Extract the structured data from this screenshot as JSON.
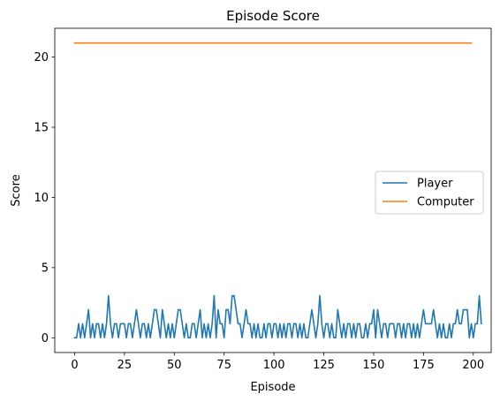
{
  "chart_data": {
    "type": "line",
    "title": "Episode Score",
    "xlabel": "Episode",
    "ylabel": "Score",
    "xlim": [
      -9.95,
      208.95
    ],
    "ylim": [
      -1.05,
      22.05
    ],
    "xticks": [
      0,
      25,
      50,
      75,
      100,
      125,
      150,
      175,
      200
    ],
    "yticks": [
      0,
      5,
      10,
      15,
      20
    ],
    "grid": false,
    "legend_position": "center-right",
    "series": [
      {
        "name": "Player",
        "color": "#1f77b4",
        "x_start": 0,
        "x_step": 1,
        "values": [
          0,
          0,
          1,
          0,
          1,
          0,
          1,
          2,
          0,
          1,
          0,
          1,
          1,
          0,
          1,
          0,
          1,
          3,
          1,
          0,
          1,
          1,
          0,
          1,
          1,
          1,
          0,
          1,
          1,
          0,
          1,
          2,
          1,
          0,
          1,
          1,
          0,
          1,
          0,
          1,
          2,
          2,
          1,
          0,
          2,
          1,
          0,
          1,
          0,
          1,
          0,
          1,
          2,
          2,
          1,
          0,
          1,
          0,
          0,
          1,
          1,
          0,
          1,
          2,
          0,
          1,
          0,
          1,
          0,
          1,
          3,
          0,
          2,
          1,
          1,
          0,
          2,
          2,
          1,
          3,
          3,
          2,
          1,
          1,
          0,
          1,
          2,
          1,
          1,
          0,
          1,
          0,
          1,
          0,
          0,
          1,
          0,
          1,
          1,
          0,
          1,
          1,
          0,
          1,
          0,
          1,
          0,
          1,
          1,
          0,
          1,
          1,
          0,
          1,
          0,
          1,
          0,
          0,
          1,
          2,
          1,
          0,
          1,
          3,
          1,
          0,
          1,
          1,
          0,
          1,
          0,
          0,
          2,
          1,
          0,
          1,
          0,
          1,
          1,
          0,
          1,
          0,
          1,
          1,
          0,
          0,
          1,
          0,
          1,
          1,
          2,
          0,
          2,
          1,
          0,
          1,
          1,
          0,
          1,
          1,
          1,
          0,
          1,
          1,
          0,
          1,
          0,
          1,
          1,
          0,
          1,
          0,
          1,
          0,
          1,
          2,
          1,
          1,
          1,
          1,
          2,
          1,
          0,
          1,
          0,
          1,
          0,
          0,
          1,
          0,
          1,
          1,
          2,
          1,
          1,
          2,
          2,
          2,
          0,
          1,
          0,
          1,
          1,
          3,
          1
        ]
      },
      {
        "name": "Computer",
        "color": "#ff7f0e",
        "x_start": 0,
        "x_step": 1,
        "values": [
          21,
          21,
          21,
          21,
          21,
          21,
          21,
          21,
          21,
          21,
          21,
          21,
          21,
          21,
          21,
          21,
          21,
          21,
          21,
          21,
          21,
          21,
          21,
          21,
          21,
          21,
          21,
          21,
          21,
          21,
          21,
          21,
          21,
          21,
          21,
          21,
          21,
          21,
          21,
          21,
          21,
          21,
          21,
          21,
          21,
          21,
          21,
          21,
          21,
          21,
          21,
          21,
          21,
          21,
          21,
          21,
          21,
          21,
          21,
          21,
          21,
          21,
          21,
          21,
          21,
          21,
          21,
          21,
          21,
          21,
          21,
          21,
          21,
          21,
          21,
          21,
          21,
          21,
          21,
          21,
          21,
          21,
          21,
          21,
          21,
          21,
          21,
          21,
          21,
          21,
          21,
          21,
          21,
          21,
          21,
          21,
          21,
          21,
          21,
          21,
          21,
          21,
          21,
          21,
          21,
          21,
          21,
          21,
          21,
          21,
          21,
          21,
          21,
          21,
          21,
          21,
          21,
          21,
          21,
          21,
          21,
          21,
          21,
          21,
          21,
          21,
          21,
          21,
          21,
          21,
          21,
          21,
          21,
          21,
          21,
          21,
          21,
          21,
          21,
          21,
          21,
          21,
          21,
          21,
          21,
          21,
          21,
          21,
          21,
          21,
          21,
          21,
          21,
          21,
          21,
          21,
          21,
          21,
          21,
          21,
          21,
          21,
          21,
          21,
          21,
          21,
          21,
          21,
          21,
          21,
          21,
          21,
          21,
          21,
          21,
          21,
          21,
          21,
          21,
          21,
          21,
          21,
          21,
          21,
          21,
          21,
          21,
          21,
          21,
          21,
          21,
          21,
          21,
          21,
          21,
          21,
          21,
          21,
          21,
          21
        ]
      }
    ]
  }
}
